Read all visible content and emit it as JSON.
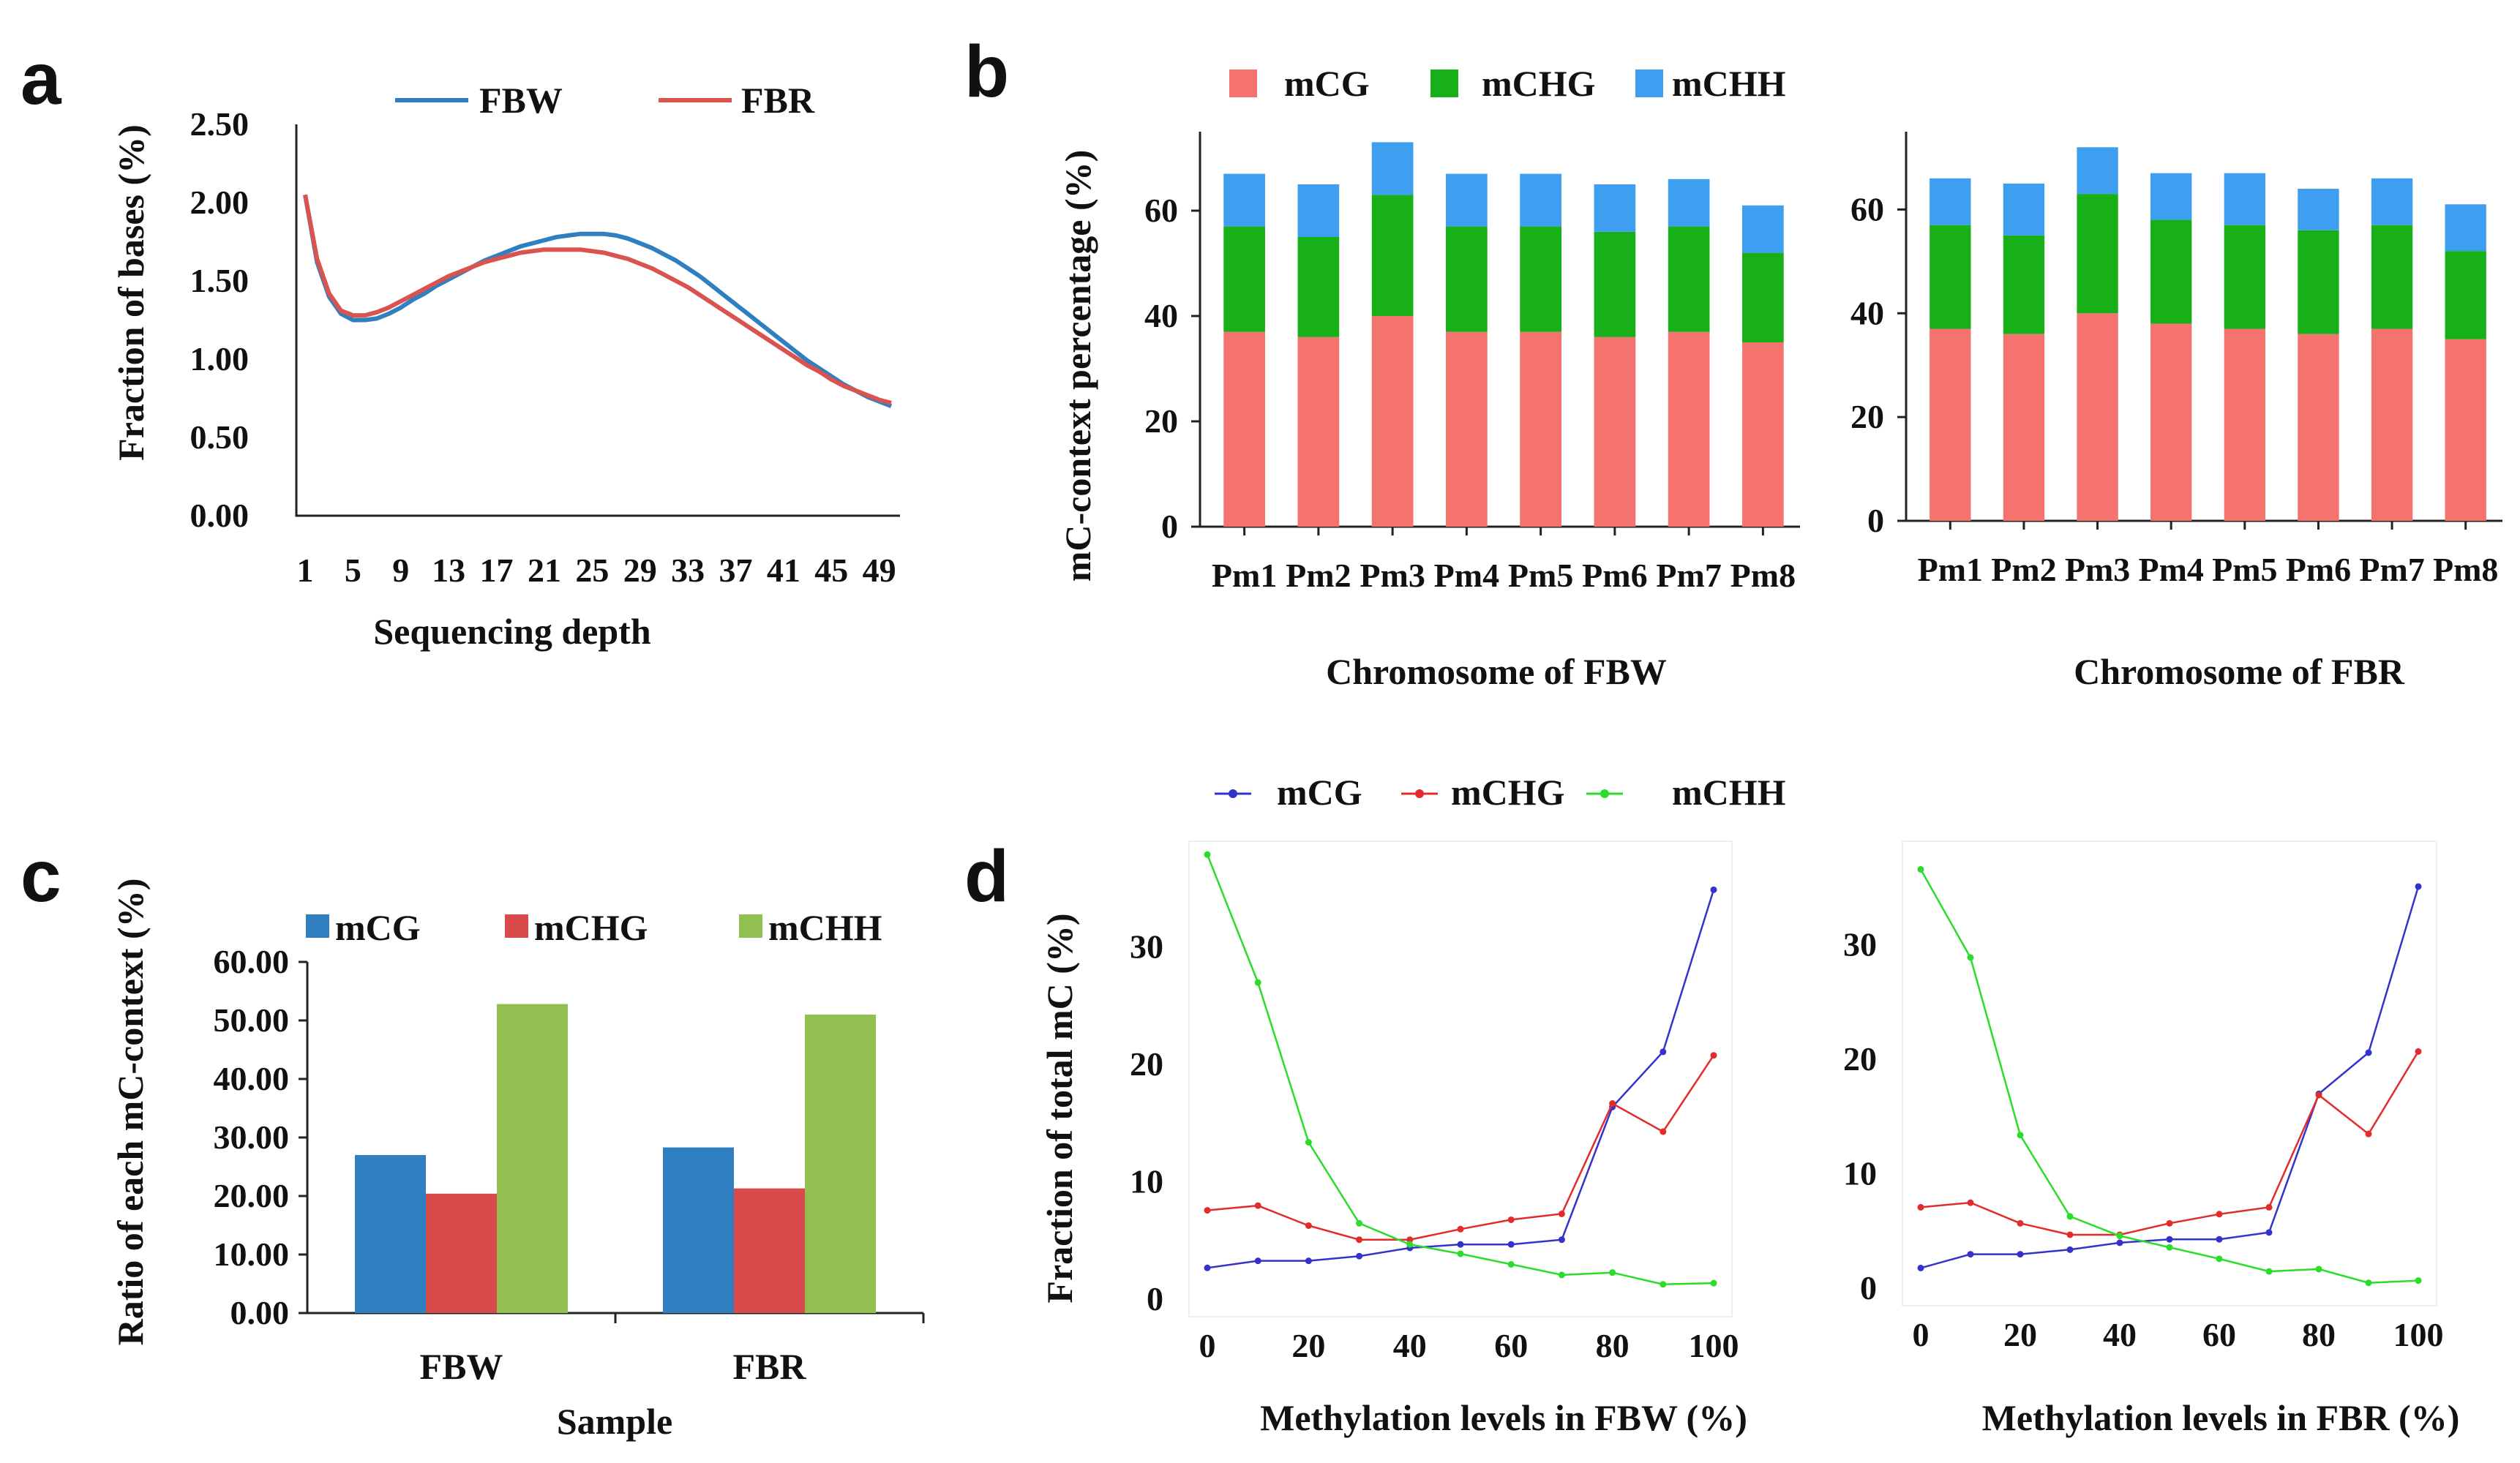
{
  "panels": {
    "a": "a",
    "b": "b",
    "c": "c",
    "d": "d"
  },
  "colors": {
    "fbw": "#2f7fc1",
    "fbr": "#d9534f",
    "b_mcg": "#f4736f",
    "b_mchg": "#18b018",
    "b_mchh": "#3e9ff0",
    "c_mcg": "#2f7fc1",
    "c_mchg": "#d94b4b",
    "c_mchh": "#92c050",
    "d_mcg": "#3333cc",
    "d_mchg": "#e22b2b",
    "d_mchh": "#2bdc2b"
  },
  "chart_data": [
    {
      "id": "a",
      "type": "line",
      "title": "",
      "xlabel": "Sequencing depth",
      "ylabel": "Fraction of bases (%)",
      "ylim": [
        0,
        2.5
      ],
      "yticks": [
        "0.00",
        "0.50",
        "1.00",
        "1.50",
        "2.00",
        "2.50"
      ],
      "x": [
        1,
        2,
        3,
        4,
        5,
        6,
        7,
        8,
        9,
        10,
        11,
        12,
        13,
        14,
        15,
        16,
        17,
        18,
        19,
        20,
        21,
        22,
        23,
        24,
        25,
        26,
        27,
        28,
        29,
        30,
        31,
        32,
        33,
        34,
        35,
        36,
        37,
        38,
        39,
        40,
        41,
        42,
        43,
        44,
        45,
        46,
        47,
        48,
        49,
        50
      ],
      "xticks": [
        "1",
        "5",
        "9",
        "13",
        "17",
        "21",
        "25",
        "29",
        "33",
        "37",
        "41",
        "45",
        "49"
      ],
      "series": [
        {
          "name": "FBW",
          "values": [
            2.05,
            1.62,
            1.4,
            1.29,
            1.25,
            1.25,
            1.26,
            1.29,
            1.33,
            1.38,
            1.42,
            1.47,
            1.51,
            1.55,
            1.59,
            1.63,
            1.66,
            1.69,
            1.72,
            1.74,
            1.76,
            1.78,
            1.79,
            1.8,
            1.8,
            1.8,
            1.79,
            1.77,
            1.74,
            1.71,
            1.67,
            1.63,
            1.58,
            1.53,
            1.47,
            1.41,
            1.35,
            1.29,
            1.23,
            1.17,
            1.11,
            1.05,
            0.99,
            0.94,
            0.89,
            0.84,
            0.8,
            0.76,
            0.73,
            0.7
          ]
        },
        {
          "name": "FBR",
          "values": [
            2.05,
            1.64,
            1.42,
            1.31,
            1.28,
            1.28,
            1.3,
            1.33,
            1.37,
            1.41,
            1.45,
            1.49,
            1.53,
            1.56,
            1.59,
            1.62,
            1.64,
            1.66,
            1.68,
            1.69,
            1.7,
            1.7,
            1.7,
            1.7,
            1.69,
            1.68,
            1.66,
            1.64,
            1.61,
            1.58,
            1.54,
            1.5,
            1.46,
            1.41,
            1.36,
            1.31,
            1.26,
            1.21,
            1.16,
            1.11,
            1.06,
            1.01,
            0.96,
            0.92,
            0.87,
            0.83,
            0.8,
            0.77,
            0.74,
            0.72
          ]
        }
      ]
    },
    {
      "id": "b-left",
      "type": "bar",
      "stacked": true,
      "xlabel": "Chromosome of FBW",
      "ylabel": "mC-context percentage (%)",
      "ylim": [
        0,
        75
      ],
      "yticks": [
        "0",
        "20",
        "40",
        "60"
      ],
      "categories": [
        "Pm1",
        "Pm2",
        "Pm3",
        "Pm4",
        "Pm5",
        "Pm6",
        "Pm7",
        "Pm8"
      ],
      "series": [
        {
          "name": "mCG",
          "values": [
            37,
            36,
            40,
            37,
            37,
            36,
            37,
            35
          ]
        },
        {
          "name": "mCHG",
          "values": [
            20,
            19,
            23,
            20,
            20,
            20,
            20,
            17
          ]
        },
        {
          "name": "mCHH",
          "values": [
            10,
            10,
            10,
            10,
            10,
            9,
            9,
            9
          ]
        }
      ]
    },
    {
      "id": "b-right",
      "type": "bar",
      "stacked": true,
      "xlabel": "Chromosome of FBR",
      "ylabel": "",
      "ylim": [
        0,
        75
      ],
      "yticks": [
        "0",
        "20",
        "40",
        "60"
      ],
      "categories": [
        "Pm1",
        "Pm2",
        "Pm3",
        "Pm4",
        "Pm5",
        "Pm6",
        "Pm7",
        "Pm8"
      ],
      "series": [
        {
          "name": "mCG",
          "values": [
            37,
            36,
            40,
            38,
            37,
            36,
            37,
            35
          ]
        },
        {
          "name": "mCHG",
          "values": [
            20,
            19,
            23,
            20,
            20,
            20,
            20,
            17
          ]
        },
        {
          "name": "mCHH",
          "values": [
            9,
            10,
            9,
            9,
            10,
            8,
            9,
            9
          ]
        }
      ]
    },
    {
      "id": "c",
      "type": "bar",
      "xlabel": "Sample",
      "ylabel": "Ratio of each mC-context (%)",
      "ylim": [
        0,
        60
      ],
      "yticks": [
        "0.00",
        "10.00",
        "20.00",
        "30.00",
        "40.00",
        "50.00",
        "60.00"
      ],
      "categories": [
        "FBW",
        "FBR"
      ],
      "series": [
        {
          "name": "mCG",
          "values": [
            27,
            28.3
          ]
        },
        {
          "name": "mCHG",
          "values": [
            20.4,
            21.3
          ]
        },
        {
          "name": "mCHH",
          "values": [
            52.8,
            51
          ]
        }
      ]
    },
    {
      "id": "d-left",
      "type": "line",
      "xlabel": "Methylation levels in FBW (%)",
      "ylabel": "Fraction of total mC (%)",
      "ylim": [
        0,
        38
      ],
      "xlim": [
        0,
        100
      ],
      "xticks": [
        "0",
        "20",
        "40",
        "60",
        "80",
        "100"
      ],
      "yticks": [
        "0",
        "10",
        "20",
        "30"
      ],
      "x": [
        0,
        10,
        20,
        30,
        40,
        50,
        60,
        70,
        80,
        90,
        100
      ],
      "series": [
        {
          "name": "mCG",
          "values": [
            2.6,
            3.2,
            3.2,
            3.6,
            4.3,
            4.6,
            4.6,
            5.0,
            16.3,
            21.0,
            34.8
          ]
        },
        {
          "name": "mCHG",
          "values": [
            7.5,
            7.9,
            6.2,
            5.0,
            5.0,
            5.9,
            6.7,
            7.2,
            16.6,
            14.2,
            20.7
          ]
        },
        {
          "name": "mCHH",
          "values": [
            37.8,
            26.9,
            13.3,
            6.4,
            4.6,
            3.8,
            2.9,
            2.0,
            2.2,
            1.2,
            1.3
          ]
        }
      ]
    },
    {
      "id": "d-right",
      "type": "line",
      "xlabel": "Methylation levels in FBR (%)",
      "ylabel": "",
      "ylim": [
        0,
        38
      ],
      "xlim": [
        0,
        100
      ],
      "xticks": [
        "0",
        "20",
        "40",
        "60",
        "80",
        "100"
      ],
      "yticks": [
        "0",
        "10",
        "20",
        "30"
      ],
      "x": [
        0,
        10,
        20,
        30,
        40,
        50,
        60,
        70,
        80,
        90,
        100
      ],
      "series": [
        {
          "name": "mCG",
          "values": [
            1.7,
            2.9,
            2.9,
            3.3,
            3.9,
            4.2,
            4.2,
            4.8,
            16.9,
            20.5,
            35.0
          ]
        },
        {
          "name": "mCHG",
          "values": [
            7.0,
            7.4,
            5.6,
            4.6,
            4.6,
            5.6,
            6.4,
            7.0,
            16.8,
            13.4,
            20.6
          ]
        },
        {
          "name": "mCHH",
          "values": [
            36.5,
            28.8,
            13.3,
            6.2,
            4.5,
            3.5,
            2.5,
            1.4,
            1.6,
            0.4,
            0.6
          ]
        }
      ]
    }
  ]
}
